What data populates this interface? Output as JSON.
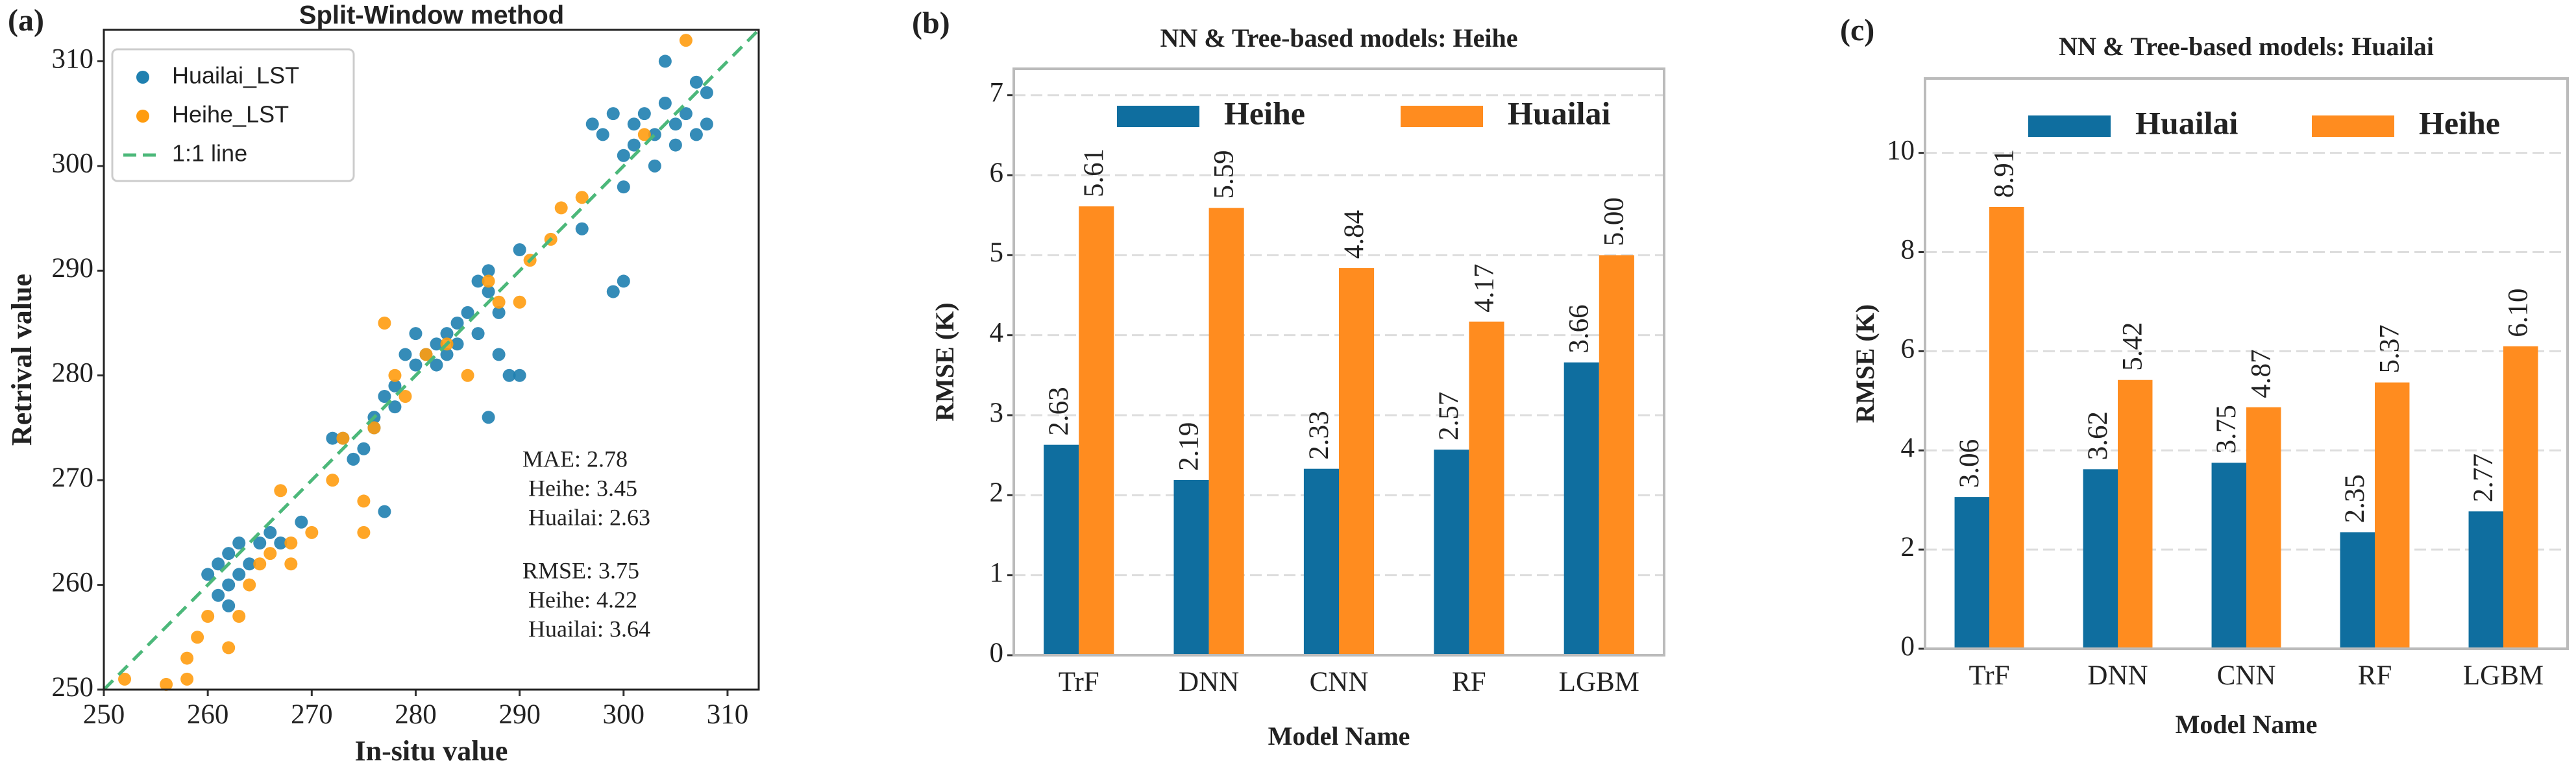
{
  "chart_data": [
    {
      "type": "scatter",
      "panel": "(a)",
      "title": "Split-Window method",
      "x_label": "In-situ value",
      "y_label": "Retrival value",
      "xlim": [
        250,
        313
      ],
      "ylim": [
        250,
        313
      ],
      "xticks": [
        250,
        260,
        270,
        280,
        290,
        300,
        310
      ],
      "yticks": [
        250,
        260,
        270,
        280,
        290,
        300,
        310
      ],
      "grid": false,
      "legend": "upper left",
      "series": [
        {
          "name": "Huailai_LST",
          "type": "scatter",
          "color": "#1f80b0",
          "x": [
            261,
            262,
            262,
            263,
            261,
            260,
            263,
            264,
            265,
            262,
            266,
            267,
            269,
            272,
            273,
            274,
            275,
            276,
            277,
            278,
            279,
            280,
            281,
            282,
            283,
            284,
            285,
            286,
            287,
            288,
            284,
            286,
            287,
            290,
            289,
            290,
            287,
            288,
            283,
            282,
            277,
            280,
            278,
            276,
            297,
            298,
            299,
            300,
            301,
            302,
            303,
            304,
            305,
            306,
            307,
            308,
            300,
            303,
            305,
            307,
            299,
            300,
            296,
            301,
            304,
            308
          ],
          "values": [
            262,
            260,
            263,
            261,
            259,
            261,
            264,
            262,
            264,
            258,
            265,
            264,
            266,
            274,
            274,
            272,
            273,
            275,
            278,
            279,
            282,
            281,
            282,
            283,
            282,
            285,
            286,
            289,
            288,
            286,
            283,
            284,
            290,
            292,
            280,
            280,
            276,
            282,
            284,
            281,
            267,
            284,
            277,
            276,
            304,
            303,
            305,
            301,
            304,
            305,
            303,
            306,
            304,
            305,
            308,
            307,
            298,
            300,
            302,
            303,
            288,
            289,
            294,
            302,
            310,
            304
          ]
        },
        {
          "name": "Heihe_LST",
          "type": "scatter",
          "color": "#ff9c0f",
          "x": [
            252,
            256,
            258,
            258,
            259,
            260,
            262,
            263,
            264,
            265,
            266,
            267,
            268,
            268,
            270,
            272,
            273,
            275,
            275,
            276,
            277,
            278,
            279,
            281,
            283,
            285,
            287,
            288,
            290,
            291,
            293,
            294,
            296,
            302,
            306
          ],
          "values": [
            251,
            250.5,
            251,
            253,
            255,
            257,
            254,
            257,
            260,
            262,
            263,
            269,
            264,
            262,
            265,
            270,
            274,
            265,
            268,
            275,
            285,
            280,
            278,
            282,
            283,
            280,
            289,
            287,
            287,
            291,
            293,
            296,
            297,
            303,
            312
          ]
        },
        {
          "name": "1:1 line",
          "type": "line",
          "color": "#4cb87a",
          "x": [
            250,
            313
          ],
          "values": [
            250,
            313
          ]
        }
      ],
      "annotations": [
        "MAE: 2.78",
        " Heihe: 3.45",
        " Huailai: 2.63",
        "RMSE: 3.75",
        " Heihe: 4.22",
        " Huailai: 3.64"
      ]
    },
    {
      "type": "bar",
      "panel": "(b)",
      "title": "NN & Tree-based models: Heihe",
      "x_label": "Model Name",
      "y_label": "RMSE (K)",
      "categories": [
        "TrF",
        "DNN",
        "CNN",
        "RF",
        "LGBM"
      ],
      "ylim": [
        0,
        7.33
      ],
      "yticks": [
        0,
        1,
        2,
        3,
        4,
        5,
        6,
        7
      ],
      "grid": true,
      "legend": "upper center",
      "series": [
        {
          "name": "Heihe",
          "color": "#0f6e9f",
          "values": [
            2.63,
            2.19,
            2.33,
            2.57,
            3.66
          ],
          "value_labels": [
            "2.63",
            "2.19",
            "2.33",
            "2.57",
            "3.66"
          ]
        },
        {
          "name": "Huailai",
          "color": "#ff8c1f",
          "values": [
            5.61,
            5.59,
            4.84,
            4.17,
            5.0
          ],
          "value_labels": [
            "5.61",
            "5.59",
            "4.84",
            "4.17",
            "5.00"
          ]
        }
      ]
    },
    {
      "type": "bar",
      "panel": "(c)",
      "title": "NN & Tree-based models: Huailai",
      "x_label": "Model Name",
      "y_label": "RMSE (K)",
      "categories": [
        "TrF",
        "DNN",
        "CNN",
        "RF",
        "LGBM"
      ],
      "ylim": [
        0,
        11.5
      ],
      "yticks": [
        0,
        2,
        4,
        6,
        8,
        10
      ],
      "grid": true,
      "legend": "upper center",
      "series": [
        {
          "name": "Huailai",
          "color": "#0f6e9f",
          "values": [
            3.06,
            3.62,
            3.75,
            2.35,
            2.77
          ],
          "value_labels": [
            "3.06",
            "3.62",
            "3.75",
            "2.35",
            "2.77"
          ]
        },
        {
          "name": "Heihe",
          "color": "#ff8c1f",
          "values": [
            8.91,
            5.42,
            4.87,
            5.37,
            6.1
          ],
          "value_labels": [
            "8.91",
            "5.42",
            "4.87",
            "5.37",
            "6.10"
          ]
        }
      ]
    }
  ]
}
